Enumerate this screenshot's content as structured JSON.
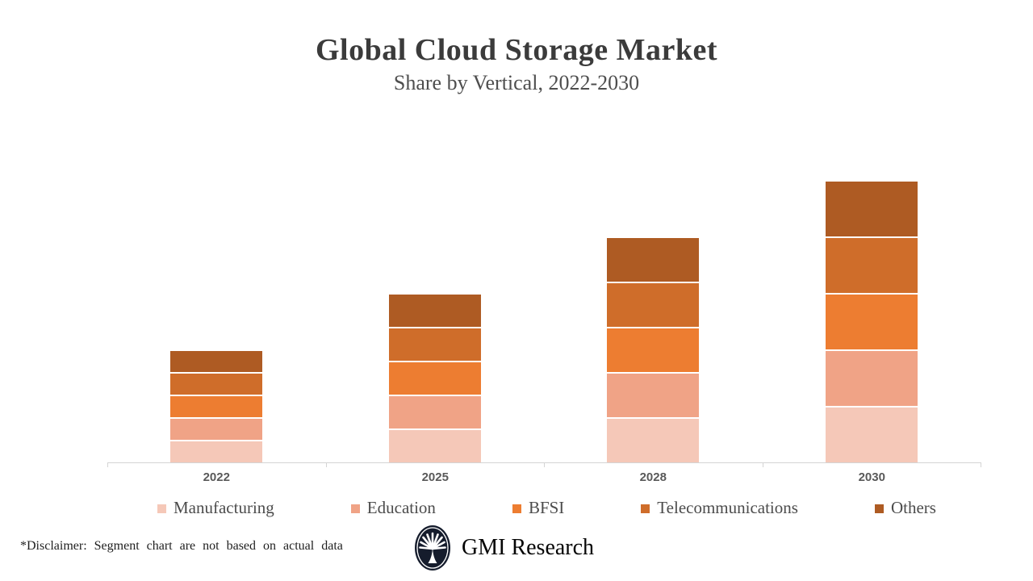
{
  "title": "Global Cloud Storage Market",
  "subtitle": "Share by Vertical, 2022-2030",
  "chart_data": {
    "type": "bar",
    "stacked": true,
    "orientation": "vertical",
    "categories": [
      "2022",
      "2025",
      "2028",
      "2030"
    ],
    "series": [
      {
        "name": "Manufacturing",
        "color": "#f5c8b8",
        "values": [
          28,
          42,
          56,
          70
        ]
      },
      {
        "name": "Education",
        "color": "#f0a386",
        "values": [
          28,
          42,
          56,
          70
        ]
      },
      {
        "name": "BFSI",
        "color": "#ed7d31",
        "values": [
          28,
          42,
          56,
          70
        ]
      },
      {
        "name": "Telecommunications",
        "color": "#cf6d2a",
        "values": [
          28,
          42,
          56,
          70
        ]
      },
      {
        "name": "Others",
        "color": "#ae5b23",
        "values": [
          28,
          42,
          56,
          70
        ]
      }
    ],
    "totals": [
      140,
      210,
      280,
      350
    ],
    "unit": "relative index (equal 20% share per segment, illustrative only)",
    "value_labels_shown": false,
    "y_axis_shown": false,
    "grid": false,
    "legend_position": "bottom",
    "note": "Segments are equal-sized placeholders per the on-image disclaimer"
  },
  "legend": {
    "items": [
      "Manufacturing",
      "Education",
      "BFSI",
      "Telecommunications",
      "Others"
    ]
  },
  "footer": {
    "disclaimer": "*Disclaimer:  Segment chart are not based on actual data",
    "brand": "GMI Research"
  },
  "colors": {
    "title_text": "#3b3b3b",
    "subtitle_text": "#4e4e4e",
    "axis_line": "#d4d4d4",
    "x_label_text": "#595959",
    "legend_text": "#4c4c4c",
    "logo_background": "#151c2c",
    "background": "#ffffff"
  }
}
